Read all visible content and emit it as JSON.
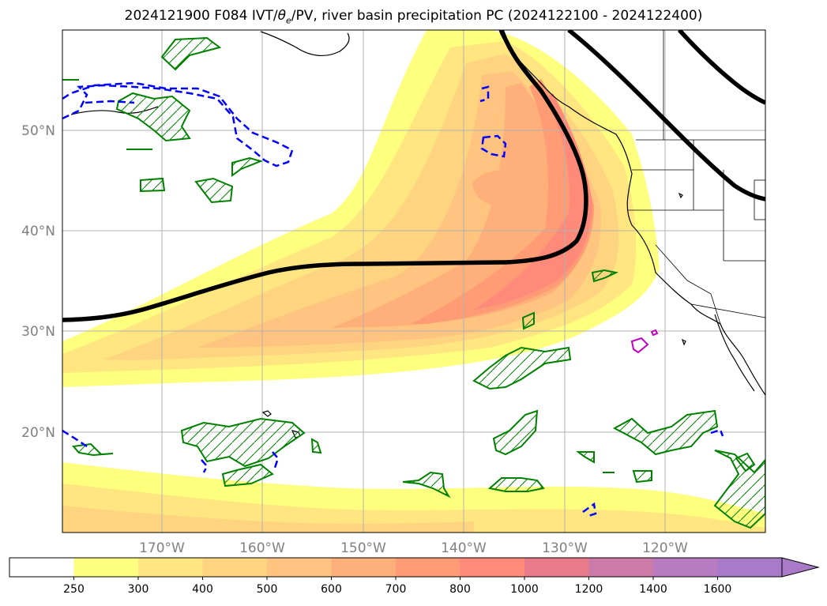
{
  "title": {
    "prefix": "2024121900 F084 IVT/",
    "theta": "θ",
    "theta_sub": "e",
    "suffix": "/PV, river basin precipitation PC (2024122100 - 2024122400)"
  },
  "map": {
    "lon_labels": [
      "170°W",
      "160°W",
      "150°W",
      "140°W",
      "130°W",
      "120°W"
    ],
    "lat_labels": [
      "50°N",
      "40°N",
      "30°N",
      "20°N"
    ],
    "colors": {
      "coastline": "#000000",
      "theta_e_contour": "#000000",
      "pv_positive": "#008000",
      "pv_negative": "#0000ff",
      "precip_contour": "#c000c0",
      "grid": "#b0b0b0"
    }
  },
  "colorbar": {
    "levels": [
      "250",
      "300",
      "400",
      "500",
      "600",
      "700",
      "800",
      "1000",
      "1200",
      "1400",
      "1600"
    ],
    "colors": [
      "#ffffff",
      "#ffff7f",
      "#ffe680",
      "#ffd480",
      "#ffc47f",
      "#ffb07a",
      "#ff9c75",
      "#ff8a7a",
      "#e87a8a",
      "#cc7aa8",
      "#b87ac0",
      "#a87ac8"
    ]
  }
}
